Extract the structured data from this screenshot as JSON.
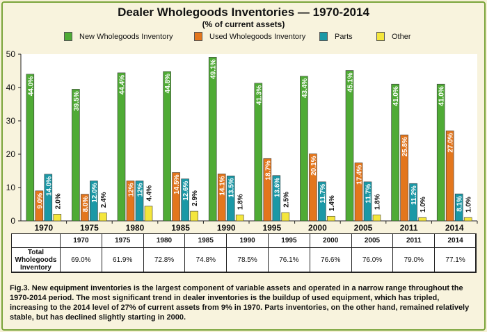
{
  "chart_data": {
    "type": "bar",
    "title": "Dealer Wholegoods Inventories — 1970-2014",
    "subtitle": "(% of current assets)",
    "categories": [
      "1970",
      "1975",
      "1980",
      "1985",
      "1990",
      "1995",
      "2000",
      "2005",
      "2011",
      "2014"
    ],
    "series": [
      {
        "name": "New Wholegoods Inventory",
        "color": "#4fab35",
        "values": [
          44.0,
          39.5,
          44.4,
          44.8,
          49.1,
          41.3,
          43.4,
          45.1,
          41.0,
          41.0
        ],
        "labels": [
          "44.0%",
          "39.5%",
          "44.4%",
          "44.8%",
          "49.1%",
          "41.3%",
          "43.4%",
          "45.1%",
          "41.0%",
          "41.0%"
        ]
      },
      {
        "name": "Used Wholegoods Inventory",
        "color": "#e3761d",
        "values": [
          9.0,
          8.0,
          12.0,
          14.5,
          14.1,
          18.7,
          20.1,
          17.4,
          25.8,
          27.0
        ],
        "labels": [
          "9.0%",
          "8.0%",
          "12%",
          "14.5%",
          "14.1%",
          "18.7%",
          "20.1%",
          "17.4%",
          "25.8%",
          "27.0%"
        ]
      },
      {
        "name": "Parts",
        "color": "#1b98a6",
        "values": [
          14.0,
          12.0,
          12.0,
          12.6,
          13.5,
          13.6,
          11.7,
          11.7,
          11.2,
          8.1
        ],
        "labels": [
          "14.0%",
          "12.0%",
          "12%",
          "12.6%",
          "13.5%",
          "13.6%",
          "11.7%",
          "11.7%",
          "11.2%",
          "8.1%"
        ]
      },
      {
        "name": "Other",
        "color": "#f4e63c",
        "values": [
          2.0,
          2.4,
          4.4,
          2.9,
          1.8,
          2.5,
          1.4,
          1.8,
          1.0,
          1.0
        ],
        "labels": [
          "2.0%",
          "2.4%",
          "4.4%",
          "2.9%",
          "1.8%",
          "2.5%",
          "1.4%",
          "1.8%",
          "1.0%",
          "1.0%"
        ]
      }
    ],
    "ylim": [
      0,
      50
    ],
    "yticks": [
      "0",
      "10",
      "20",
      "30",
      "40",
      "50"
    ],
    "grid": false,
    "legend_position": "top"
  },
  "table": {
    "row_label": "Total Wholegoods Inventory",
    "values": [
      "69.0%",
      "61.9%",
      "72.8%",
      "74.8%",
      "78.5%",
      "76.1%",
      "76.6%",
      "76.0%",
      "79.0%",
      "77.1%"
    ]
  },
  "caption": "Fig.3. New equipment inventories is the largest component of variable assets and operated in a narrow range throughout the 1970-2014 period. The most significant trend in dealer inventories is the buildup of used equipment, which has tripled, increasing to the 2014 level of 27% of current assets from 9% in 1970. Parts inventories, on the other hand, remained relatively stable, but has declined slightly starting in 2000."
}
